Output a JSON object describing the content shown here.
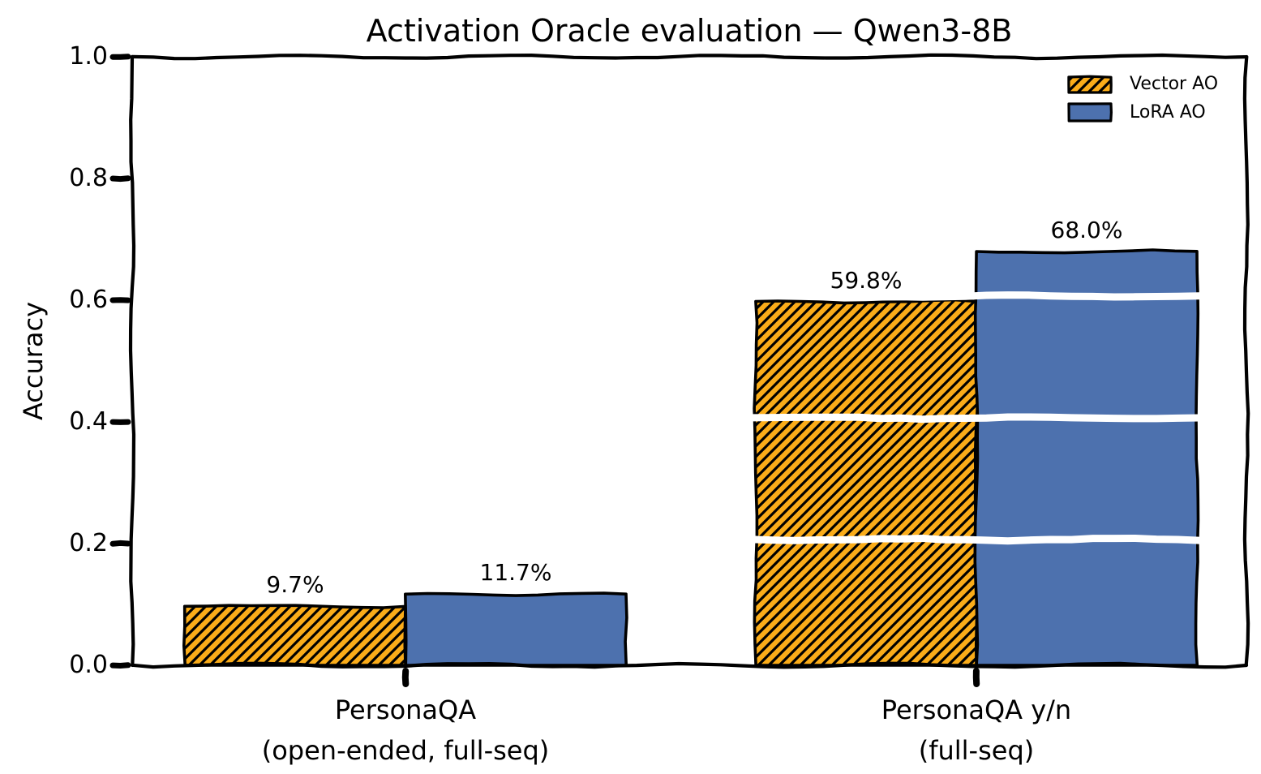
{
  "chart_data": {
    "type": "bar",
    "style": "xkcd-hand-drawn",
    "title": "Activation Oracle evaluation — Qwen3-8B",
    "xlabel": "",
    "ylabel": "Accuracy",
    "ylim": [
      0.0,
      1.0
    ],
    "yticks": [
      "0.0",
      "0.2",
      "0.4",
      "0.6",
      "0.8",
      "1.0"
    ],
    "gridlines": [
      0.2,
      0.4,
      0.6,
      0.8
    ],
    "gridline_color": "#ffffff",
    "categories": [
      {
        "line1": "PersonaQA",
        "line2": "(open-ended, full-seq)"
      },
      {
        "line1": "PersonaQA y/n",
        "line2": "(full-seq)"
      }
    ],
    "series": [
      {
        "name": "Vector AO",
        "color": "#FAAC19",
        "hatch": "/",
        "edge_color": "#000000",
        "values": [
          0.097,
          0.598
        ],
        "labels": [
          "9.7%",
          "59.8%"
        ]
      },
      {
        "name": "LoRA AO",
        "color": "#4D71AE",
        "hatch": null,
        "edge_color": "#000000",
        "values": [
          0.117,
          0.68
        ],
        "labels": [
          "11.7%",
          "68.0%"
        ]
      }
    ],
    "legend_position": "upper right",
    "legend_frame": false
  }
}
